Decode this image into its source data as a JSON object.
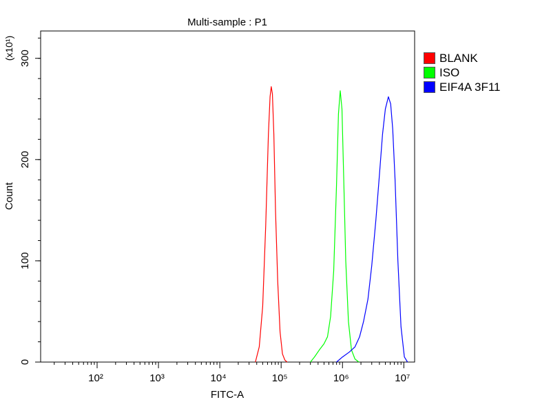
{
  "chart_data": {
    "type": "line",
    "title": "Multi-sample : P1",
    "xlabel": "FITC-A",
    "ylabel": "Count",
    "y_multiplier_label": "(x10¹)",
    "x_scale": "log",
    "xlim": [
      12,
      15000000
    ],
    "ylim": [
      0,
      327
    ],
    "x_ticks": [
      {
        "value": 100,
        "label": "10²"
      },
      {
        "value": 1000,
        "label": "10³"
      },
      {
        "value": 10000,
        "label": "10⁴"
      },
      {
        "value": 100000,
        "label": "10⁵"
      },
      {
        "value": 1000000,
        "label": "10⁶"
      },
      {
        "value": 10000000,
        "label": "10⁷"
      }
    ],
    "y_ticks": [
      {
        "value": 0,
        "label": "0"
      },
      {
        "value": 100,
        "label": "100"
      },
      {
        "value": 200,
        "label": "200"
      },
      {
        "value": 300,
        "label": "300"
      }
    ],
    "legend_position": "right",
    "grid": false,
    "series": [
      {
        "name": "BLANK",
        "color": "#ff0000",
        "x": [
          38000,
          44000,
          50000,
          56000,
          62000,
          66000,
          69000,
          72000,
          76000,
          81000,
          88000,
          96000,
          105000,
          115000,
          125000
        ],
        "y": [
          0,
          15,
          55,
          135,
          225,
          262,
          272,
          265,
          225,
          150,
          80,
          30,
          8,
          2,
          0
        ]
      },
      {
        "name": "ISO",
        "color": "#00ff00",
        "x": [
          300000,
          350000,
          420000,
          500000,
          570000,
          640000,
          720000,
          800000,
          860000,
          920000,
          980000,
          1050000,
          1130000,
          1250000,
          1400000,
          1600000,
          1850000
        ],
        "y": [
          0,
          5,
          12,
          18,
          25,
          45,
          90,
          175,
          245,
          268,
          250,
          180,
          100,
          40,
          12,
          3,
          0
        ]
      },
      {
        "name": "EIF4A 3F11",
        "color": "#0000ff",
        "x": [
          800000,
          1000000,
          1300000,
          1600000,
          1900000,
          2200000,
          2600000,
          3000000,
          3500000,
          4000000,
          4500000,
          5000000,
          5600000,
          6100000,
          6600000,
          7200000,
          8000000,
          9000000,
          10200000,
          11500000
        ],
        "y": [
          0,
          5,
          10,
          15,
          25,
          40,
          62,
          95,
          140,
          185,
          225,
          250,
          262,
          255,
          230,
          180,
          100,
          35,
          5,
          0
        ]
      }
    ]
  }
}
